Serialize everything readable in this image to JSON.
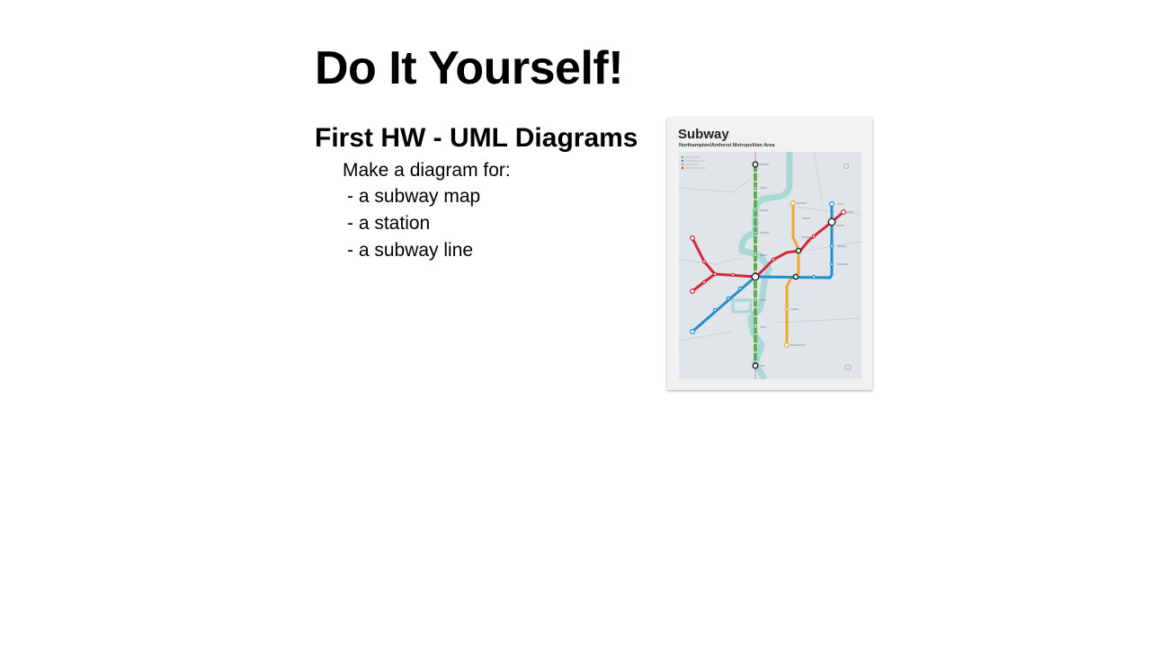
{
  "slide": {
    "title": "Do It Yourself!",
    "subtitle": "First HW - UML Diagrams",
    "intro": "Make a diagram for:",
    "bullets": [
      "- a subway map",
      "- a station",
      "- a subway line"
    ]
  },
  "poster": {
    "title": "Subway",
    "subtitle": "Northampton/Amherst Metropolitan Area",
    "line_colors": {
      "green": "#5bb14a",
      "red": "#d7263d",
      "blue": "#1f8fd0",
      "orange": "#f2a531",
      "river": "#a9d8d6"
    }
  }
}
